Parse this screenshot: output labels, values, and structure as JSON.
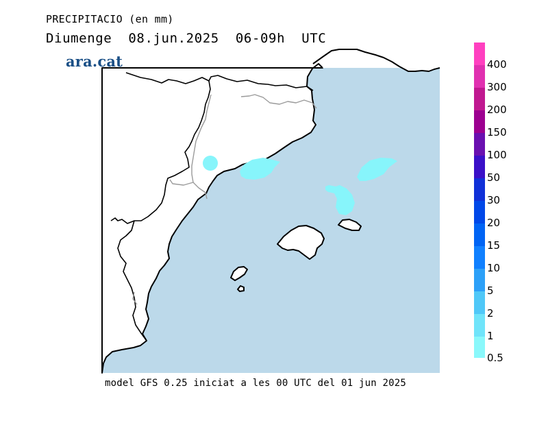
{
  "header": {
    "title": "PRECIPITACIO (en mm)",
    "date_line": "Diumenge  08.jun.2025  06-09h  UTC"
  },
  "logo": {
    "text": "ara.cat",
    "color": "#1a4f86"
  },
  "map": {
    "sea_color": "#bcd9ea",
    "land_color": "#ffffff",
    "precip_color": "#87f5fb",
    "precip_areas_mm": [
      {
        "location": "interior Catalonia",
        "level": "0.5"
      },
      {
        "location": "coast near Barcelona",
        "level": "0.5"
      },
      {
        "location": "north of Menorca",
        "level": "0.5"
      },
      {
        "location": "between Mallorca and Menorca",
        "level": "0.5"
      }
    ]
  },
  "legend": {
    "levels": [
      {
        "label": "400",
        "color": "#ff40c0"
      },
      {
        "label": "300",
        "color": "#e030b0"
      },
      {
        "label": "200",
        "color": "#c01890"
      },
      {
        "label": "150",
        "color": "#9c0090"
      },
      {
        "label": "100",
        "color": "#6a10b0"
      },
      {
        "label": "50",
        "color": "#3a10c8"
      },
      {
        "label": "30",
        "color": "#1030d8"
      },
      {
        "label": "20",
        "color": "#0048e8"
      },
      {
        "label": "15",
        "color": "#0064f4"
      },
      {
        "label": "10",
        "color": "#1080ff"
      },
      {
        "label": "5",
        "color": "#2ca0f8"
      },
      {
        "label": "2",
        "color": "#50c8f8"
      },
      {
        "label": "1",
        "color": "#70e4fa"
      },
      {
        "label": "0.5",
        "color": "#8af8fb"
      }
    ]
  },
  "footer": {
    "text": "model GFS 0.25 iniciat a les 00 UTC del 01 jun 2025"
  }
}
